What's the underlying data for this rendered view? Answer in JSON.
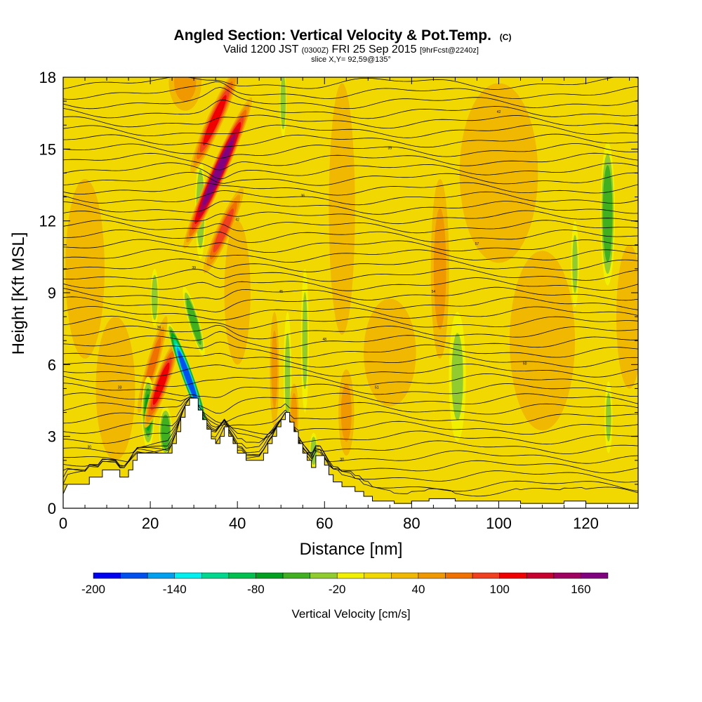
{
  "title": {
    "main": "Angled Section: Vertical Velocity & Pot.Temp.",
    "main_suffix": "(C)",
    "valid_a": "Valid 1200 JST",
    "valid_b": "(0300Z)",
    "valid_c": "FRI 25 Sep 2015",
    "valid_d": "[9hrFcst@2240z]",
    "slice": "slice X,Y= 92,59@135°"
  },
  "chart_data": {
    "type": "heatmap",
    "xlabel": "Distance [nm]",
    "ylabel": "Height [Kft MSL]",
    "xlim": [
      0,
      132
    ],
    "ylim": [
      0,
      18
    ],
    "x_ticks": [
      "0",
      "20",
      "40",
      "60",
      "80",
      "100",
      "120"
    ],
    "y_ticks": [
      "0",
      "3",
      "6",
      "9",
      "12",
      "15",
      "18"
    ],
    "x_tick_values": [
      0,
      20,
      40,
      60,
      80,
      100,
      120
    ],
    "y_tick_values": [
      0,
      3,
      6,
      9,
      12,
      15,
      18
    ],
    "colorbar": {
      "label": "Vertical Velocity [cm/s]",
      "min": -200,
      "max": 180,
      "step": 20,
      "tick_labels": [
        "-200",
        "-140",
        "-80",
        "-20",
        "40",
        "100",
        "160"
      ],
      "tick_values": [
        -200,
        -140,
        -80,
        -20,
        40,
        100,
        160
      ],
      "colors": [
        "#0000f0",
        "#0050f0",
        "#00a0f0",
        "#00f0f0",
        "#00d890",
        "#00c050",
        "#00a020",
        "#40b020",
        "#90cc30",
        "#f0f000",
        "#f0d800",
        "#f0b800",
        "#f09800",
        "#f07000",
        "#f04020",
        "#f00000",
        "#c80030",
        "#a00060",
        "#800080"
      ]
    },
    "background_velocity_cm_s": 10,
    "velocity_cells_cm_s": [
      {
        "x": 35.5,
        "y": 14.0,
        "rx": 1.2,
        "ry": 2.3,
        "tilt": 0.6,
        "w": 165
      },
      {
        "x": 34.8,
        "y": 16.2,
        "rx": 1.2,
        "ry": 1.6,
        "tilt": 0.6,
        "w": 100
      },
      {
        "x": 36.8,
        "y": 11.6,
        "rx": 1.1,
        "ry": 1.3,
        "tilt": 0.6,
        "w": 80
      },
      {
        "x": 28.0,
        "y": 17.8,
        "rx": 2.5,
        "ry": 0.8,
        "tilt": 0.0,
        "w": 55
      },
      {
        "x": 22.5,
        "y": 5.2,
        "rx": 1.1,
        "ry": 1.3,
        "tilt": 0.5,
        "w": 110
      },
      {
        "x": 20.5,
        "y": 6.0,
        "rx": 0.9,
        "ry": 1.4,
        "tilt": 0.4,
        "w": 70
      },
      {
        "x": 19.5,
        "y": 4.0,
        "rx": 1.0,
        "ry": 1.0,
        "tilt": 0.0,
        "w": -70
      },
      {
        "x": 23.5,
        "y": 3.2,
        "rx": 1.0,
        "ry": 0.7,
        "tilt": 0.0,
        "w": -60
      },
      {
        "x": 28.6,
        "y": 5.5,
        "rx": 0.9,
        "ry": 1.6,
        "tilt": -0.5,
        "w": -180
      },
      {
        "x": 30.0,
        "y": 7.8,
        "rx": 0.8,
        "ry": 1.0,
        "tilt": -0.4,
        "w": -60
      },
      {
        "x": 21.0,
        "y": 8.8,
        "rx": 0.6,
        "ry": 0.8,
        "tilt": 0.0,
        "w": -40
      },
      {
        "x": 31.5,
        "y": 12.5,
        "rx": 0.8,
        "ry": 1.4,
        "tilt": 0.0,
        "w": -40
      },
      {
        "x": 51.5,
        "y": 5.5,
        "rx": 0.6,
        "ry": 1.8,
        "tilt": 0.0,
        "w": -35
      },
      {
        "x": 55.5,
        "y": 7.0,
        "rx": 0.6,
        "ry": 2.0,
        "tilt": 0.0,
        "w": -30
      },
      {
        "x": 48.5,
        "y": 5.8,
        "rx": 0.7,
        "ry": 1.6,
        "tilt": 0.0,
        "w": 45
      },
      {
        "x": 53.0,
        "y": 4.0,
        "rx": 0.7,
        "ry": 0.8,
        "tilt": 0.0,
        "w": 40
      },
      {
        "x": 57.5,
        "y": 2.4,
        "rx": 0.6,
        "ry": 0.5,
        "tilt": 0.0,
        "w": -40
      },
      {
        "x": 65.0,
        "y": 4.0,
        "rx": 1.2,
        "ry": 1.2,
        "tilt": 0.0,
        "w": 50
      },
      {
        "x": 64.0,
        "y": 12.5,
        "rx": 2.0,
        "ry": 3.5,
        "tilt": 0.0,
        "w": 35
      },
      {
        "x": 50.5,
        "y": 17.0,
        "rx": 0.5,
        "ry": 1.0,
        "tilt": 0.0,
        "w": -40
      },
      {
        "x": 90.5,
        "y": 5.5,
        "rx": 1.3,
        "ry": 1.8,
        "tilt": 0.0,
        "w": -30
      },
      {
        "x": 125.0,
        "y": 12.3,
        "rx": 1.1,
        "ry": 2.0,
        "tilt": 0.0,
        "w": -60
      },
      {
        "x": 125.2,
        "y": 3.8,
        "rx": 0.6,
        "ry": 1.0,
        "tilt": 0.0,
        "w": -30
      },
      {
        "x": 117.5,
        "y": 10.2,
        "rx": 0.6,
        "ry": 1.2,
        "tilt": 0.0,
        "w": -30
      },
      {
        "x": 86.5,
        "y": 10.0,
        "rx": 1.4,
        "ry": 2.5,
        "tilt": 0.0,
        "w": 40
      },
      {
        "x": 12.0,
        "y": 5.0,
        "rx": 3.0,
        "ry": 2.0,
        "tilt": 0.0,
        "w": 35
      },
      {
        "x": 5.0,
        "y": 10.0,
        "rx": 3.0,
        "ry": 2.5,
        "tilt": 0.0,
        "w": 30
      },
      {
        "x": 100.0,
        "y": 14.0,
        "rx": 6.0,
        "ry": 2.5,
        "tilt": 0.0,
        "w": 30
      },
      {
        "x": 110.0,
        "y": 7.0,
        "rx": 5.0,
        "ry": 2.5,
        "tilt": 0.0,
        "w": 30
      },
      {
        "x": 40.0,
        "y": 9.0,
        "rx": 2.0,
        "ry": 2.0,
        "tilt": 0.0,
        "w": 35
      },
      {
        "x": 75.0,
        "y": 6.5,
        "rx": 4.0,
        "ry": 1.5,
        "tilt": 0.0,
        "w": 25
      },
      {
        "x": 130.0,
        "y": 8.0,
        "rx": 2.0,
        "ry": 2.0,
        "tilt": 0.0,
        "w": 35
      }
    ],
    "terrain_kft": [
      [
        0,
        0.6
      ],
      [
        1,
        1.0
      ],
      [
        6,
        1.0
      ],
      [
        6,
        1.3
      ],
      [
        9,
        1.3
      ],
      [
        9,
        1.6
      ],
      [
        13,
        1.6
      ],
      [
        13,
        1.3
      ],
      [
        15,
        1.3
      ],
      [
        15,
        1.6
      ],
      [
        16,
        1.6
      ],
      [
        16,
        2.0
      ],
      [
        17,
        2.0
      ],
      [
        17,
        2.3
      ],
      [
        20,
        2.3
      ],
      [
        20,
        2.3
      ],
      [
        25,
        2.3
      ],
      [
        25,
        2.7
      ],
      [
        26,
        2.7
      ],
      [
        26,
        3.2
      ],
      [
        27,
        3.2
      ],
      [
        27,
        3.8
      ],
      [
        28,
        3.8
      ],
      [
        28,
        4.3
      ],
      [
        29,
        4.3
      ],
      [
        29,
        4.6
      ],
      [
        31,
        4.6
      ],
      [
        31,
        4.1
      ],
      [
        32,
        4.1
      ],
      [
        32,
        3.7
      ],
      [
        33,
        3.7
      ],
      [
        33,
        3.3
      ],
      [
        34,
        3.3
      ],
      [
        34,
        2.9
      ],
      [
        35,
        2.9
      ],
      [
        35,
        2.7
      ],
      [
        36,
        2.7
      ],
      [
        36,
        3.0
      ],
      [
        37,
        3.0
      ],
      [
        37,
        3.4
      ],
      [
        38,
        3.4
      ],
      [
        38,
        3.0
      ],
      [
        39,
        3.0
      ],
      [
        39,
        2.7
      ],
      [
        40,
        2.7
      ],
      [
        40,
        2.3
      ],
      [
        42,
        2.3
      ],
      [
        42,
        2.0
      ],
      [
        46,
        2.0
      ],
      [
        46,
        2.3
      ],
      [
        47,
        2.3
      ],
      [
        47,
        2.7
      ],
      [
        48,
        2.7
      ],
      [
        48,
        3.0
      ],
      [
        49,
        3.0
      ],
      [
        49,
        3.4
      ],
      [
        50,
        3.4
      ],
      [
        50,
        3.7
      ],
      [
        51,
        3.7
      ],
      [
        51,
        4.0
      ],
      [
        52,
        4.0
      ],
      [
        52,
        3.6
      ],
      [
        53,
        3.6
      ],
      [
        53,
        3.2
      ],
      [
        54,
        3.2
      ],
      [
        54,
        2.7
      ],
      [
        55,
        2.7
      ],
      [
        55,
        2.3
      ],
      [
        56,
        2.3
      ],
      [
        56,
        2.0
      ],
      [
        57,
        2.0
      ],
      [
        57,
        1.7
      ],
      [
        58,
        1.7
      ],
      [
        58,
        2.2
      ],
      [
        59,
        2.2
      ],
      [
        59,
        2.2
      ],
      [
        60,
        2.2
      ],
      [
        60,
        1.8
      ],
      [
        61,
        1.8
      ],
      [
        61,
        1.4
      ],
      [
        62,
        1.4
      ],
      [
        62,
        1.1
      ],
      [
        64,
        1.1
      ],
      [
        64,
        0.9
      ],
      [
        67,
        0.9
      ],
      [
        67,
        0.7
      ],
      [
        69,
        0.7
      ],
      [
        69,
        0.5
      ],
      [
        71,
        0.5
      ],
      [
        71,
        0.3
      ],
      [
        76,
        0.3
      ],
      [
        76,
        0.2
      ],
      [
        80,
        0.2
      ],
      [
        80,
        0.3
      ],
      [
        84,
        0.3
      ],
      [
        84,
        0.4
      ],
      [
        90,
        0.4
      ],
      [
        90,
        0.3
      ],
      [
        105,
        0.3
      ],
      [
        105,
        0.2
      ],
      [
        115,
        0.2
      ],
      [
        115,
        0.3
      ],
      [
        120,
        0.3
      ],
      [
        120,
        0.2
      ],
      [
        132,
        0.2
      ]
    ],
    "isentrope_labels": [
      "30",
      "33",
      "36",
      "39",
      "42",
      "45",
      "48",
      "51",
      "54",
      "57",
      "60"
    ]
  }
}
